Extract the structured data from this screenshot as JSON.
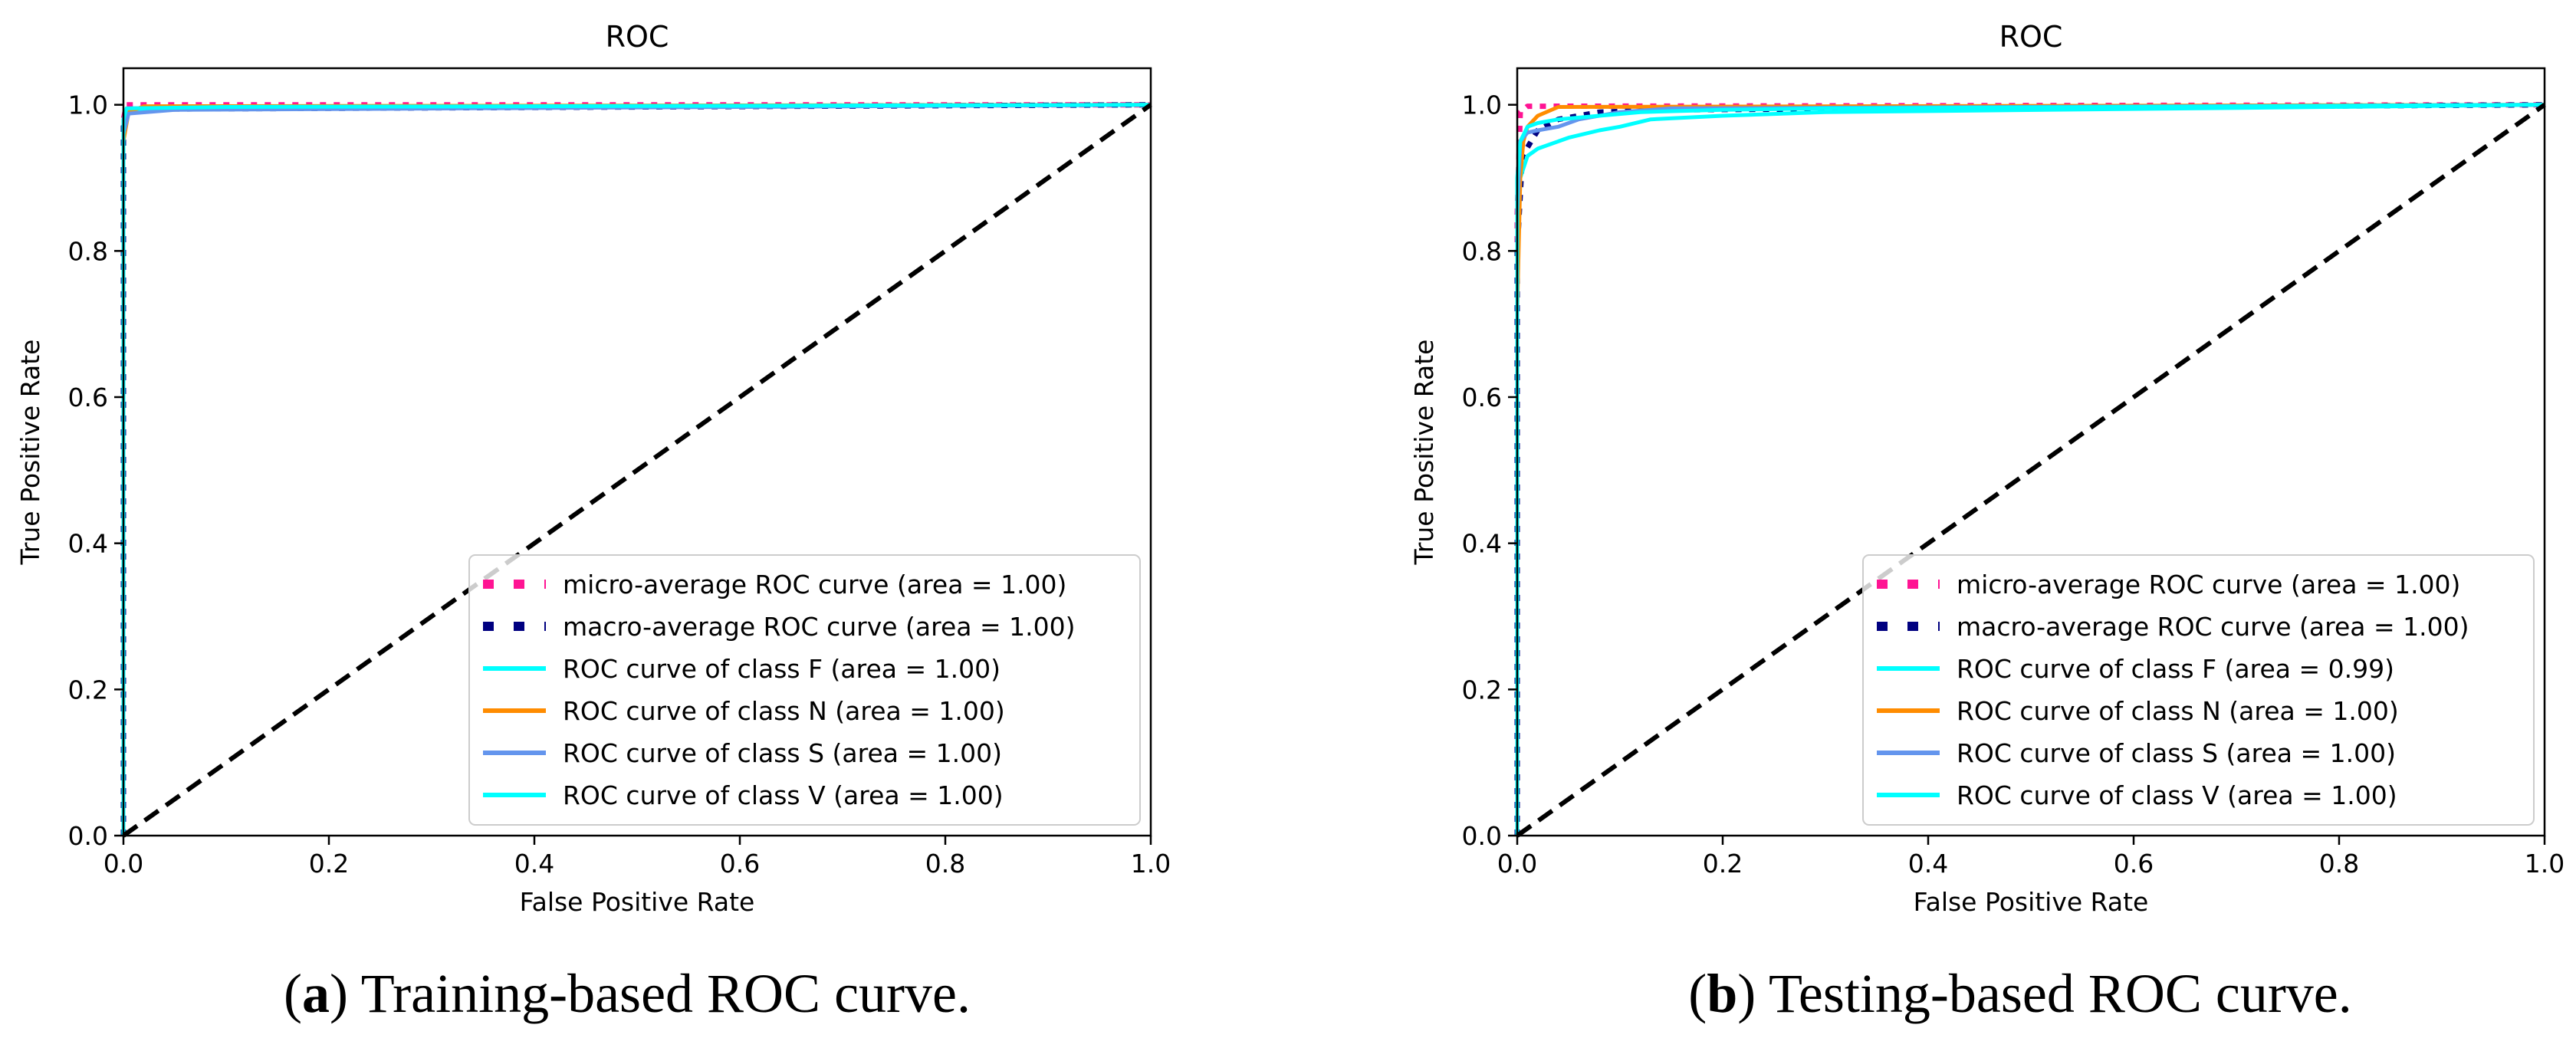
{
  "chart_data": [
    {
      "type": "line",
      "title": "ROC",
      "xlabel": "False Positive Rate",
      "ylabel": "True Positive Rate",
      "xlim": [
        0.0,
        1.0
      ],
      "ylim": [
        0.0,
        1.05
      ],
      "xticks": [
        "0.0",
        "0.2",
        "0.4",
        "0.6",
        "0.8",
        "1.0"
      ],
      "yticks": [
        "0.0",
        "0.2",
        "0.4",
        "0.6",
        "0.8",
        "1.0"
      ],
      "legend_position": "lower-right",
      "caption": {
        "letter": "a",
        "text": "Training-based ROC curve."
      },
      "series": [
        {
          "name": "micro-average ROC curve (area = 1.00)",
          "color": "#ff1493",
          "style": "dotted",
          "x": [
            0,
            0.0,
            0.003,
            1.0
          ],
          "y": [
            0,
            0.98,
            1.0,
            1.0
          ]
        },
        {
          "name": "macro-average ROC curve (area = 1.00)",
          "color": "#000080",
          "style": "dotted",
          "x": [
            0,
            0.0,
            0.004,
            1.0
          ],
          "y": [
            0,
            0.97,
            0.994,
            1.0
          ]
        },
        {
          "name": "ROC curve of class F (area = 1.00)",
          "color": "#00ffff",
          "style": "solid",
          "x": [
            0,
            0.0,
            0.004,
            0.05,
            1.0
          ],
          "y": [
            0,
            0.97,
            0.992,
            0.995,
            1.0
          ]
        },
        {
          "name": "ROC curve of class N (area = 1.00)",
          "color": "#ff8c00",
          "style": "solid",
          "x": [
            0,
            0.0,
            0.005,
            0.02,
            1.0
          ],
          "y": [
            0,
            0.95,
            0.99,
            0.998,
            1.0
          ]
        },
        {
          "name": "ROC curve of class S (area = 1.00)",
          "color": "#6495ed",
          "style": "solid",
          "x": [
            0,
            0.0,
            0.005,
            0.05,
            1.0
          ],
          "y": [
            0,
            0.96,
            0.988,
            0.993,
            1.0
          ]
        },
        {
          "name": "ROC curve of class V (area = 1.00)",
          "color": "#00ffff",
          "style": "solid",
          "x": [
            0,
            0.0,
            0.003,
            0.1,
            1.0
          ],
          "y": [
            0,
            0.98,
            0.995,
            0.997,
            1.0
          ]
        },
        {
          "name": "",
          "color": "#000000",
          "style": "dashed",
          "x": [
            0,
            1
          ],
          "y": [
            0,
            1
          ]
        }
      ]
    },
    {
      "type": "line",
      "title": "ROC",
      "xlabel": "False Positive Rate",
      "ylabel": "True Positive Rate",
      "xlim": [
        0.0,
        1.0
      ],
      "ylim": [
        0.0,
        1.05
      ],
      "xticks": [
        "0.0",
        "0.2",
        "0.4",
        "0.6",
        "0.8",
        "1.0"
      ],
      "yticks": [
        "0.0",
        "0.2",
        "0.4",
        "0.6",
        "0.8",
        "1.0"
      ],
      "legend_position": "lower-right",
      "caption": {
        "letter": "b",
        "text": "Testing-based ROC curve."
      },
      "series": [
        {
          "name": "micro-average ROC curve (area = 1.00)",
          "color": "#ff1493",
          "style": "dotted",
          "x": [
            0,
            0.0,
            0.003,
            0.01,
            1.0
          ],
          "y": [
            0,
            0.85,
            0.99,
            0.998,
            1.0
          ]
        },
        {
          "name": "macro-average ROC curve (area = 1.00)",
          "color": "#000080",
          "style": "dotted",
          "x": [
            0,
            0.0,
            0.005,
            0.02,
            0.04,
            0.08,
            0.15,
            1.0
          ],
          "y": [
            0,
            0.8,
            0.93,
            0.965,
            0.98,
            0.99,
            0.993,
            1.0
          ]
        },
        {
          "name": "ROC curve of class F (area = 0.99)",
          "color": "#00ffff",
          "style": "solid",
          "x": [
            0,
            0.0,
            0.003,
            0.01,
            0.02,
            0.05,
            0.08,
            0.1,
            0.13,
            0.2,
            0.3,
            1.0
          ],
          "y": [
            0,
            0.75,
            0.9,
            0.93,
            0.94,
            0.955,
            0.965,
            0.97,
            0.98,
            0.985,
            0.99,
            1.0
          ]
        },
        {
          "name": "ROC curve of class N (area = 1.00)",
          "color": "#ff8c00",
          "style": "solid",
          "x": [
            0,
            0.0,
            0.003,
            0.006,
            0.01,
            0.02,
            0.04,
            1.0
          ],
          "y": [
            0,
            0.72,
            0.9,
            0.95,
            0.97,
            0.985,
            0.997,
            1.0
          ]
        },
        {
          "name": "ROC curve of class S (area = 1.00)",
          "color": "#6495ed",
          "style": "solid",
          "x": [
            0,
            0.0,
            0.003,
            0.01,
            0.02,
            0.04,
            0.06,
            0.1,
            0.15,
            1.0
          ],
          "y": [
            0,
            0.85,
            0.95,
            0.962,
            0.965,
            0.97,
            0.98,
            0.99,
            0.995,
            1.0
          ]
        },
        {
          "name": "ROC curve of class V (area = 1.00)",
          "color": "#00ffff",
          "style": "solid",
          "x": [
            0,
            0.0,
            0.003,
            0.01,
            0.02,
            0.04,
            0.08,
            0.12,
            0.2,
            0.3,
            1.0
          ],
          "y": [
            0,
            0.9,
            0.95,
            0.97,
            0.975,
            0.98,
            0.985,
            0.99,
            0.993,
            0.995,
            1.0
          ]
        },
        {
          "name": "",
          "color": "#000000",
          "style": "dashed",
          "x": [
            0,
            1
          ],
          "y": [
            0,
            1
          ]
        }
      ]
    }
  ]
}
